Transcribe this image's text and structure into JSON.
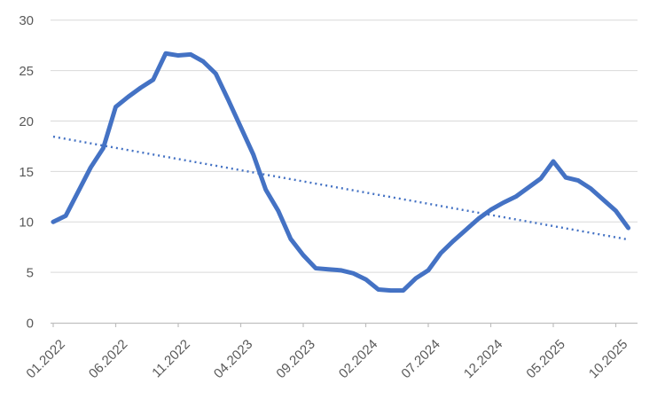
{
  "chart_data": {
    "type": "line",
    "title": "",
    "xlabel": "",
    "ylabel": "",
    "ylim": [
      0,
      30
    ],
    "y_ticks": [
      0,
      5,
      10,
      15,
      20,
      25,
      30
    ],
    "x_tick_labels": [
      "01.2022",
      "06.2022",
      "11.2022",
      "04.2023",
      "09.2023",
      "02.2024",
      "07.2024",
      "12.2024",
      "05.2025",
      "10.2025"
    ],
    "x_tick_every": 5,
    "grid": "horizontal",
    "legend": "none",
    "categories": [
      "01.2022",
      "02.2022",
      "03.2022",
      "04.2022",
      "05.2022",
      "06.2022",
      "07.2022",
      "08.2022",
      "09.2022",
      "10.2022",
      "11.2022",
      "12.2022",
      "01.2023",
      "02.2023",
      "03.2023",
      "04.2023",
      "05.2023",
      "06.2023",
      "07.2023",
      "08.2023",
      "09.2023",
      "10.2023",
      "11.2023",
      "12.2023",
      "01.2024",
      "02.2024",
      "03.2024",
      "04.2024",
      "05.2024",
      "06.2024",
      "07.2024",
      "08.2024",
      "09.2024",
      "10.2024",
      "11.2024",
      "12.2024",
      "01.2025",
      "02.2025",
      "03.2025",
      "04.2025",
      "05.2025",
      "06.2025",
      "07.2025",
      "08.2025",
      "09.2025",
      "10.2025",
      "11.2025"
    ],
    "series": [
      {
        "name": "monthly-values",
        "style": "solid",
        "values": [
          10.0,
          10.6,
          13.0,
          15.4,
          17.3,
          21.4,
          22.4,
          23.3,
          24.1,
          26.7,
          26.5,
          26.6,
          25.9,
          24.7,
          22.1,
          19.4,
          16.7,
          13.2,
          11.1,
          8.3,
          6.7,
          5.4,
          5.3,
          5.2,
          4.9,
          4.3,
          3.3,
          3.2,
          3.2,
          4.4,
          5.2,
          6.9,
          8.1,
          9.2,
          10.3,
          11.2,
          11.9,
          12.5,
          13.4,
          14.3,
          16.0,
          14.4,
          14.1,
          13.3,
          12.2,
          11.1,
          9.4
        ]
      },
      {
        "name": "linear-trend",
        "style": "dotted",
        "start": 18.45,
        "end": 8.25
      }
    ],
    "colors": {
      "line": "#4472C4",
      "trend": "#4472C4",
      "grid": "#D9D9D9",
      "axis": "#BFBFBF",
      "tick_label": "#595959",
      "background": "#FFFFFF"
    }
  }
}
